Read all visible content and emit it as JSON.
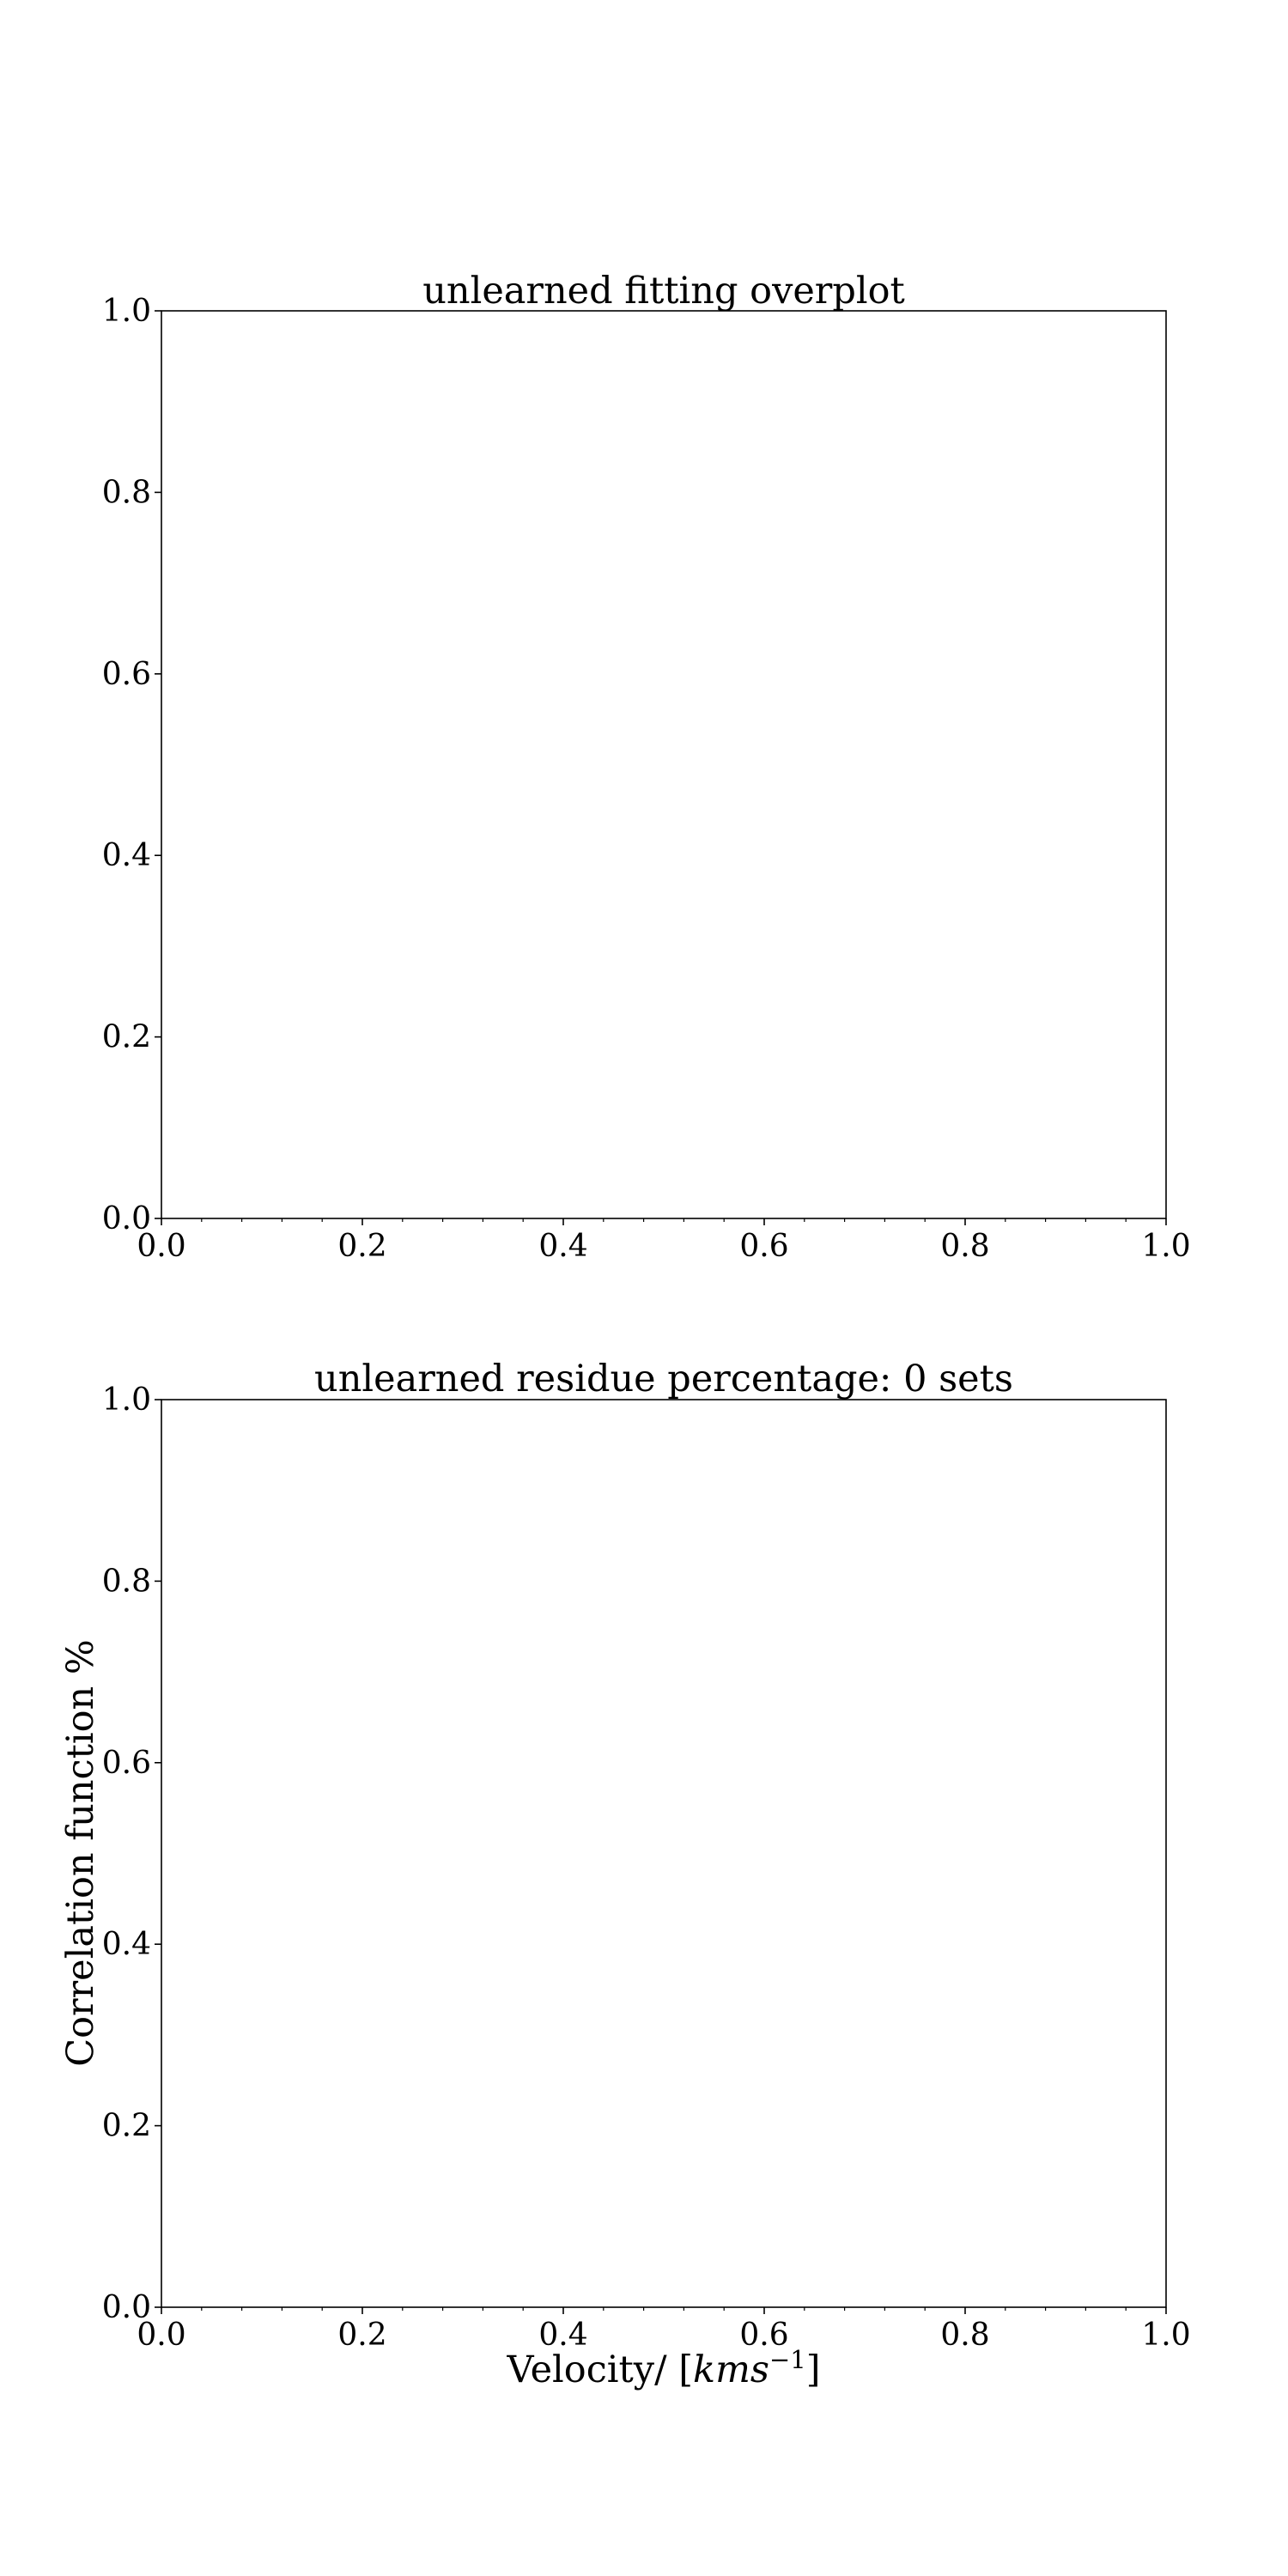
{
  "chart_data": [
    {
      "type": "line",
      "title": "unlearned fitting overplot",
      "xlabel": "",
      "ylabel": "",
      "xlim": [
        0.0,
        1.0
      ],
      "ylim": [
        0.0,
        1.0
      ],
      "xticks": [
        "0.0",
        "0.2",
        "0.4",
        "0.6",
        "0.8",
        "1.0"
      ],
      "yticks": [
        "0.0",
        "0.2",
        "0.4",
        "0.6",
        "0.8",
        "1.0"
      ],
      "grid": false,
      "series": []
    },
    {
      "type": "line",
      "title": "unlearned residue percentage: 0 sets",
      "xlabel": "Velocity/ [kms⁻¹]",
      "ylabel": "Correlation function %",
      "xlim": [
        0.0,
        1.0
      ],
      "ylim": [
        0.0,
        1.0
      ],
      "xticks": [
        "0.0",
        "0.2",
        "0.4",
        "0.6",
        "0.8",
        "1.0"
      ],
      "yticks": [
        "0.0",
        "0.2",
        "0.4",
        "0.6",
        "0.8",
        "1.0"
      ],
      "grid": false,
      "series": []
    }
  ],
  "colors": {
    "axes": "#000000",
    "background": "#ffffff"
  }
}
